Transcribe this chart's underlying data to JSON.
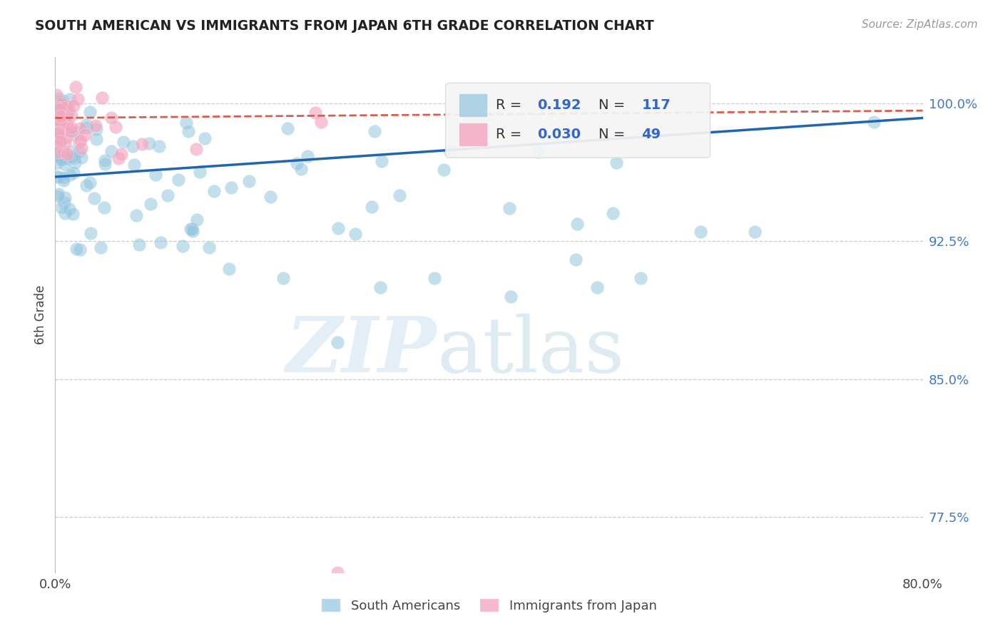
{
  "title": "SOUTH AMERICAN VS IMMIGRANTS FROM JAPAN 6TH GRADE CORRELATION CHART",
  "source": "Source: ZipAtlas.com",
  "ylabel_label": "6th Grade",
  "blue_color": "#92c5de",
  "pink_color": "#f4a6c0",
  "line_blue": "#2166ac",
  "line_pink": "#d6604d",
  "background_color": "#ffffff",
  "grid_color": "#cccccc",
  "x_min": 0.0,
  "x_max": 0.8,
  "y_min": 0.745,
  "y_max": 1.025,
  "y_ticks": [
    0.775,
    0.85,
    0.925,
    1.0
  ],
  "y_tick_labels": [
    "77.5%",
    "85.0%",
    "92.5%",
    "100.0%"
  ],
  "blue_line_x0": 0.0,
  "blue_line_x1": 0.8,
  "blue_line_y0": 0.96,
  "blue_line_y1": 0.992,
  "pink_line_x0": 0.0,
  "pink_line_x1": 0.8,
  "pink_line_y0": 0.992,
  "pink_line_y1": 0.996
}
